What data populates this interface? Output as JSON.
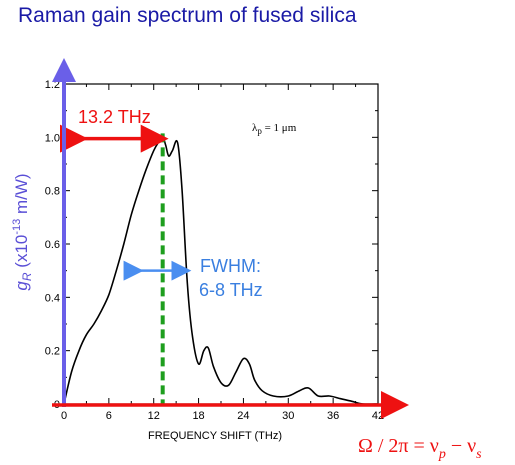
{
  "title": "Raman gain spectrum of fused silica",
  "chart_data": {
    "type": "line",
    "xlabel": "FREQUENCY SHIFT (THz)",
    "ylabel_base": "g",
    "ylabel_sub": "R",
    "ylabel_rest": " (x10",
    "ylabel_sup": "-13",
    "ylabel_unit": " m/W)",
    "xlim": [
      0,
      42
    ],
    "ylim": [
      0,
      1.2
    ],
    "x_ticks": [
      0,
      6,
      12,
      18,
      24,
      30,
      36,
      42
    ],
    "x_tick_labels": [
      "0",
      "6",
      "12",
      "18",
      "24",
      "30",
      "36",
      "42"
    ],
    "y_ticks": [
      0,
      0.2,
      0.4,
      0.6,
      0.8,
      1.0,
      1.2
    ],
    "y_tick_labels": [
      "0",
      "0.2",
      "0.4",
      "0.6",
      "0.8",
      "1.0",
      "1.2"
    ],
    "series": [
      {
        "x": [
          0,
          1,
          2,
          3,
          4,
          5,
          6,
          7,
          8,
          9,
          10,
          11,
          12,
          12.6,
          13.2,
          13.6,
          14.0,
          14.5,
          15.2,
          15.8,
          16.5,
          17.2,
          18.0,
          18.7,
          19.3,
          20.0,
          21.0,
          22.0,
          23.0,
          24.0,
          24.8,
          25.5,
          26.5,
          28.0,
          30.0,
          31.5,
          32.7,
          34.0,
          35.5,
          37.0,
          38.5,
          40.0,
          42.0
        ],
        "y": [
          0.0,
          0.12,
          0.2,
          0.26,
          0.3,
          0.35,
          0.41,
          0.5,
          0.6,
          0.71,
          0.8,
          0.88,
          0.95,
          0.98,
          1.0,
          0.97,
          0.93,
          0.95,
          0.98,
          0.8,
          0.45,
          0.25,
          0.15,
          0.2,
          0.21,
          0.14,
          0.08,
          0.07,
          0.12,
          0.17,
          0.15,
          0.09,
          0.05,
          0.03,
          0.03,
          0.05,
          0.06,
          0.03,
          0.03,
          0.02,
          0.01,
          0.0,
          0.0
        ]
      }
    ],
    "annotations": {
      "lambda_label": "λ",
      "lambda_sub": "p",
      "lambda_rest": " = 1 μm",
      "peak_label": "13.2 THz",
      "peak_x": 13.2,
      "fwhm_line1": "FWHM:",
      "fwhm_line2": "6-8 THz",
      "fwhm_range": [
        8.5,
        16.5
      ],
      "fwhm_y": 0.5
    },
    "formula": {
      "lhs": "Ω / 2π = ν",
      "sub1": "p",
      "mid": " − ν",
      "sub2": "s"
    }
  }
}
